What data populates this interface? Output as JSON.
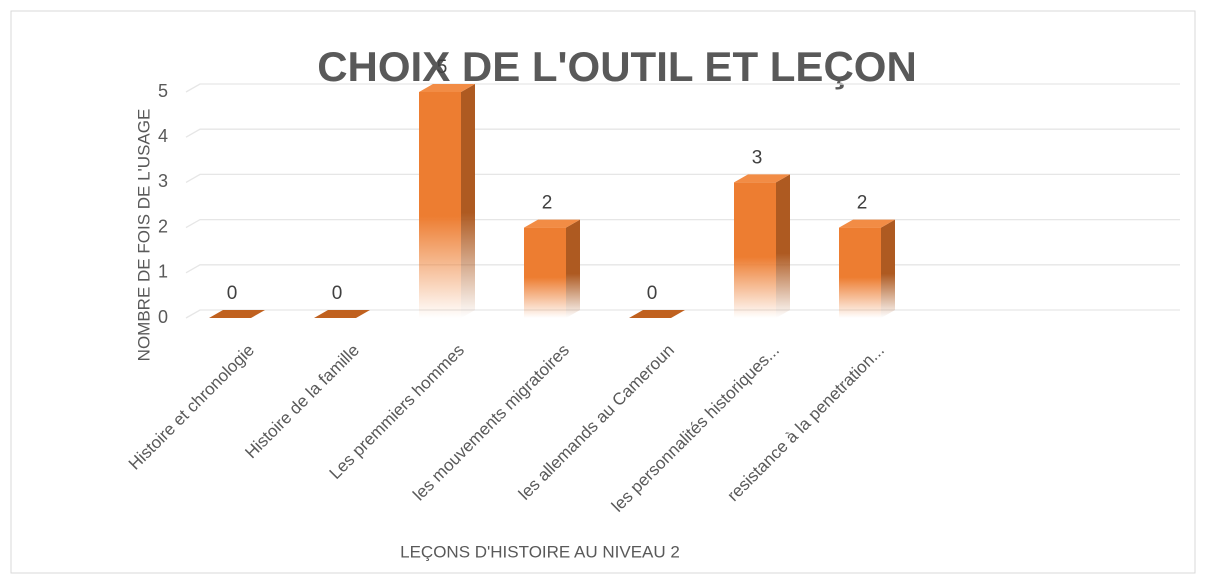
{
  "chart_data": {
    "type": "bar",
    "title": "CHOIX DE L'OUTIL ET LEÇON",
    "x_label": "LEÇONS D'HISTOIRE AU NIVEAU 2",
    "y_label": "NOMBRE DE FOIS DE L'USAGE",
    "categories": [
      "Histoire et chronologie",
      "Histoire de la famille",
      "Les premmiers hommes",
      "les mouvements migratoires",
      "les allemands au Cameroun",
      "les personnalités historiques...",
      "resistance à la penetration...",
      null,
      null
    ],
    "values": [
      0,
      0,
      5,
      2,
      0,
      3,
      2,
      null,
      null
    ],
    "color": "#ed7d31",
    "ylim": [
      0,
      5
    ],
    "yticks": [
      0,
      1,
      2,
      3,
      4,
      5
    ],
    "grid": true
  }
}
